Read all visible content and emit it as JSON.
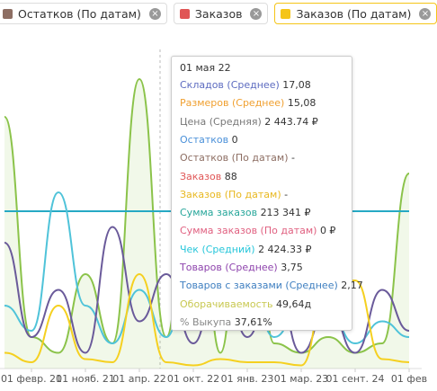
{
  "legend": [
    {
      "name": "Остатков (По датам)",
      "color": "#8d6e63"
    },
    {
      "name": "Заказов",
      "color": "#e05555"
    },
    {
      "name": "Заказов (По датам)",
      "color": "#f5c518"
    }
  ],
  "tooltip": {
    "title": "01 мая 22",
    "rows": [
      {
        "label": "Складов (Среднее)",
        "value": "17,08",
        "color": "#5c6bc0"
      },
      {
        "label": "Размеров (Среднее)",
        "value": "15,08",
        "color": "#f0a030"
      },
      {
        "label": "Цена (Средняя)",
        "value": "2 443.74 ₽",
        "color": "#777777"
      },
      {
        "label": "Остатков",
        "value": "0",
        "color": "#4a90d9"
      },
      {
        "label": "Остатков (По датам)",
        "value": "-",
        "color": "#8d6e63"
      },
      {
        "label": "Заказов",
        "value": "88",
        "color": "#e05555"
      },
      {
        "label": "Заказов (По датам)",
        "value": "-",
        "color": "#e8b820"
      },
      {
        "label": "Сумма заказов",
        "value": "213 341 ₽",
        "color": "#26a69a"
      },
      {
        "label": "Сумма заказов (По датам)",
        "value": "0 ₽",
        "color": "#e06080"
      },
      {
        "label": "Чек (Средний)",
        "value": "2 424.33 ₽",
        "color": "#26c6da"
      },
      {
        "label": "Товаров (Среднее)",
        "value": "3,75",
        "color": "#8e44ad"
      },
      {
        "label": "Товаров с заказами (Среднее)",
        "value": "2,17",
        "color": "#3f7fc0"
      },
      {
        "label": "Оборачиваемость",
        "value": "49,64д",
        "color": "#c8c850"
      },
      {
        "label": "% Выкупа",
        "value": "37,61%",
        "color": "#888888"
      }
    ]
  },
  "chart_data": {
    "type": "line",
    "categories": [
      null,
      "01 февр. 21",
      null,
      "01 нояб. 21",
      null,
      "01 апр. 22",
      null,
      "01 окт. 22",
      null,
      "01 янв. 23",
      null,
      "01 мар. 23",
      null,
      "01 сент. 24",
      null,
      "01 фев"
    ],
    "ylim": [
      0,
      100
    ],
    "series": [
      {
        "color": "#8bc34a",
        "area": true,
        "values": [
          80,
          10,
          5,
          30,
          8,
          92,
          10,
          98,
          5,
          90,
          8,
          5,
          10,
          5,
          8,
          62
        ]
      },
      {
        "color": "#26a9c4",
        "values": [
          50,
          50,
          50,
          50,
          50,
          50,
          50,
          50,
          50,
          50,
          50,
          50,
          50,
          50,
          50,
          50
        ]
      },
      {
        "color": "#4fc3d9",
        "values": [
          20,
          12,
          56,
          20,
          8,
          25,
          10,
          40,
          15,
          30,
          10,
          20,
          18,
          8,
          15,
          10
        ]
      },
      {
        "color": "#6a5a9a",
        "values": [
          40,
          10,
          25,
          5,
          45,
          15,
          30,
          8,
          35,
          10,
          30,
          5,
          20,
          5,
          25,
          12
        ]
      },
      {
        "color": "#f5d020",
        "values": [
          5,
          2,
          20,
          3,
          2,
          30,
          2,
          1,
          3,
          2,
          2,
          1,
          28,
          28,
          3,
          2
        ]
      }
    ]
  }
}
